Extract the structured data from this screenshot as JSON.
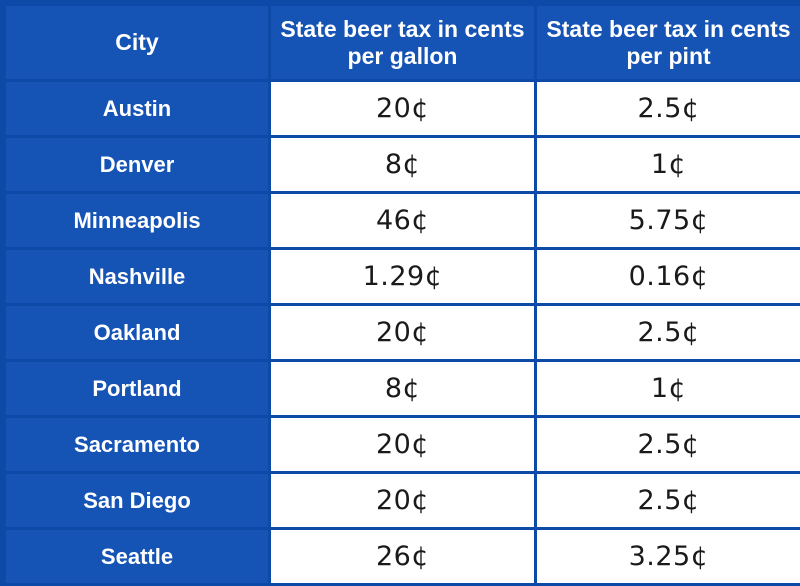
{
  "table": {
    "headers": [
      "City",
      "State beer tax in cents per gallon",
      "State beer tax in cents per pint"
    ],
    "rows": [
      [
        "Austin",
        "20¢",
        "2.5¢"
      ],
      [
        "Denver",
        "8¢",
        "1¢"
      ],
      [
        "Minneapolis",
        "46¢",
        "5.75¢"
      ],
      [
        "Nashville",
        "1.29¢",
        "0.16¢"
      ],
      [
        "Oakland",
        "20¢",
        "2.5¢"
      ],
      [
        "Portland",
        "8¢",
        "1¢"
      ],
      [
        "Sacramento",
        "20¢",
        "2.5¢"
      ],
      [
        "San Diego",
        "20¢",
        "2.5¢"
      ],
      [
        "Seattle",
        "26¢",
        "3.25¢"
      ]
    ]
  },
  "colors": {
    "header_bg": "#1553b5",
    "border": "#0d4aa8",
    "cell_bg": "#ffffff",
    "header_text": "#ffffff",
    "cell_text": "#1a1a1a"
  }
}
